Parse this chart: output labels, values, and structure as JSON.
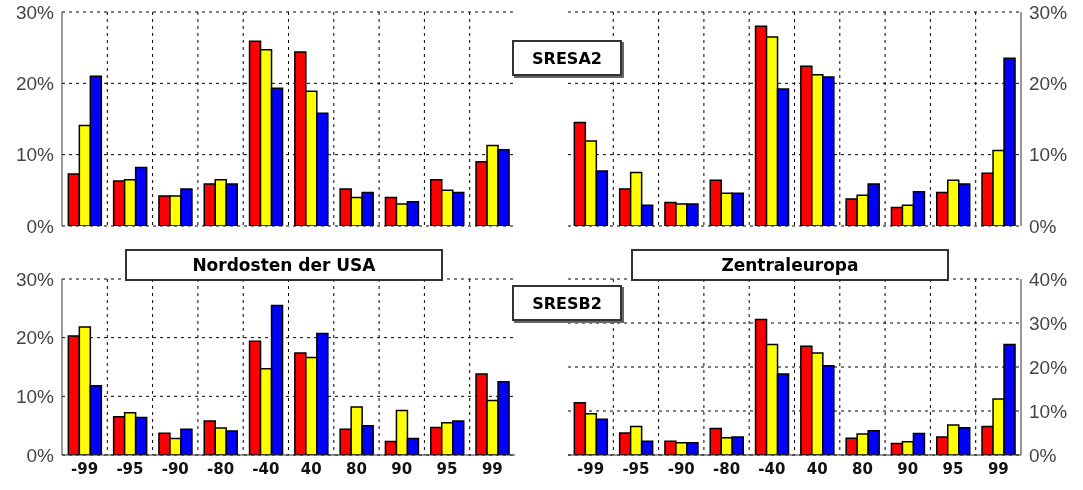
{
  "chart_data": [
    {
      "type": "bar",
      "categories": [
        "-99",
        "-95",
        "-90",
        "-80",
        "-40",
        "40",
        "80",
        "90",
        "95",
        "99"
      ],
      "ylim": [
        0,
        30
      ],
      "yticks": [
        {
          "value": 0,
          "label": "0%"
        },
        {
          "value": 10,
          "label": "10%"
        },
        {
          "value": 20,
          "label": "20%"
        },
        {
          "value": 30,
          "label": "30%"
        }
      ],
      "grid": true,
      "tick_labels": "y",
      "annotations": [
        "SRESA2"
      ],
      "series": [
        {
          "color": "#ff0000",
          "values": [
            7.3,
            6.3,
            4.2,
            5.9,
            25.9,
            24.4,
            5.2,
            4.0,
            6.5,
            9.0
          ]
        },
        {
          "color": "#ffff00",
          "values": [
            14.1,
            6.5,
            4.2,
            6.5,
            24.7,
            18.9,
            4.0,
            3.1,
            5.0,
            11.3
          ]
        },
        {
          "color": "#0000ff",
          "values": [
            21.0,
            8.2,
            5.2,
            5.9,
            19.3,
            15.8,
            4.7,
            3.4,
            4.7,
            10.7
          ]
        }
      ]
    },
    {
      "type": "bar",
      "categories": [
        "-99",
        "-95",
        "-90",
        "-80",
        "-40",
        "40",
        "80",
        "90",
        "95",
        "99"
      ],
      "y2lim": [
        0,
        30
      ],
      "y2ticks": [
        {
          "value": 0,
          "label": "0%"
        },
        {
          "value": 10,
          "label": "10%"
        },
        {
          "value": 20,
          "label": "20%"
        },
        {
          "value": 30,
          "label": "30%"
        }
      ],
      "grid": true,
      "tick_labels": "y",
      "series": [
        {
          "color": "#ff0000",
          "axis": "y2",
          "values": [
            14.5,
            5.2,
            3.3,
            6.4,
            28.0,
            22.4,
            3.8,
            2.6,
            4.7,
            7.4
          ]
        },
        {
          "color": "#ffff00",
          "axis": "y2",
          "values": [
            11.9,
            7.5,
            3.1,
            4.6,
            26.5,
            21.2,
            4.3,
            2.9,
            6.4,
            10.6
          ]
        },
        {
          "color": "#0000ff",
          "axis": "y2",
          "values": [
            7.7,
            2.9,
            3.1,
            4.6,
            19.2,
            20.9,
            5.9,
            4.8,
            5.9,
            23.5
          ]
        }
      ]
    },
    {
      "type": "bar",
      "title": "Nordosten der USA",
      "categories": [
        "-99",
        "-95",
        "-90",
        "-80",
        "-40",
        "40",
        "80",
        "90",
        "95",
        "99"
      ],
      "ylim": [
        0,
        30
      ],
      "yticks": [
        {
          "value": 0,
          "label": "0%"
        },
        {
          "value": 10,
          "label": "10%"
        },
        {
          "value": 20,
          "label": "20%"
        },
        {
          "value": 30,
          "label": "30%"
        }
      ],
      "grid": true,
      "annotations": [
        "SRESB2"
      ],
      "series": [
        {
          "color": "#ff0000",
          "values": [
            20.3,
            6.5,
            3.7,
            5.8,
            19.4,
            17.4,
            4.4,
            2.3,
            4.7,
            13.8
          ]
        },
        {
          "color": "#ffff00",
          "values": [
            21.8,
            7.2,
            2.8,
            4.6,
            14.7,
            16.6,
            8.2,
            7.6,
            5.5,
            9.3
          ]
        },
        {
          "color": "#0000ff",
          "values": [
            11.8,
            6.4,
            4.4,
            4.1,
            25.5,
            20.7,
            5.0,
            2.8,
            5.8,
            12.5
          ]
        }
      ]
    },
    {
      "type": "bar",
      "title": "Zentraleuropa",
      "categories": [
        "-99",
        "-95",
        "-90",
        "-80",
        "-40",
        "40",
        "80",
        "90",
        "95",
        "99"
      ],
      "y2lim": [
        0,
        40
      ],
      "y2ticks": [
        {
          "value": 0,
          "label": "0%"
        },
        {
          "value": 10,
          "label": "10%"
        },
        {
          "value": 20,
          "label": "20%"
        },
        {
          "value": 30,
          "label": "30%"
        },
        {
          "value": 40,
          "label": "40%"
        }
      ],
      "grid": true,
      "series": [
        {
          "color": "#ff0000",
          "axis": "y2",
          "values": [
            11.9,
            5.0,
            3.1,
            6.0,
            30.8,
            24.7,
            3.8,
            2.6,
            4.1,
            6.5
          ]
        },
        {
          "color": "#ffff00",
          "axis": "y2",
          "values": [
            9.4,
            6.5,
            2.8,
            3.9,
            25.1,
            23.2,
            4.8,
            3.0,
            6.8,
            12.7
          ]
        },
        {
          "color": "#0000ff",
          "axis": "y2",
          "values": [
            8.1,
            3.1,
            2.8,
            4.1,
            18.4,
            20.3,
            5.5,
            4.9,
            6.2,
            25.1
          ]
        }
      ]
    }
  ]
}
